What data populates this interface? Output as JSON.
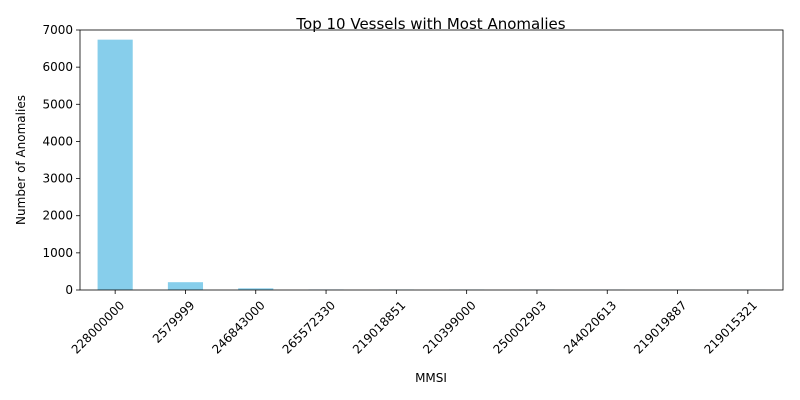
{
  "chart_data": {
    "type": "bar",
    "title": "Top 10 Vessels with Most Anomalies",
    "xlabel": "MMSI",
    "ylabel": "Number of Anomalies",
    "categories": [
      "228000000",
      "2579999",
      "246843000",
      "265572330",
      "219018851",
      "210399000",
      "250002903",
      "244020613",
      "219019887",
      "219015321"
    ],
    "values": [
      6740,
      210,
      45,
      12,
      10,
      9,
      8,
      7,
      6,
      6
    ],
    "ylim": [
      0,
      7000
    ],
    "yticks": [
      0,
      1000,
      2000,
      3000,
      4000,
      5000,
      6000,
      7000
    ],
    "grid": false,
    "legend": "none",
    "bar_color": "#87ceeb"
  }
}
